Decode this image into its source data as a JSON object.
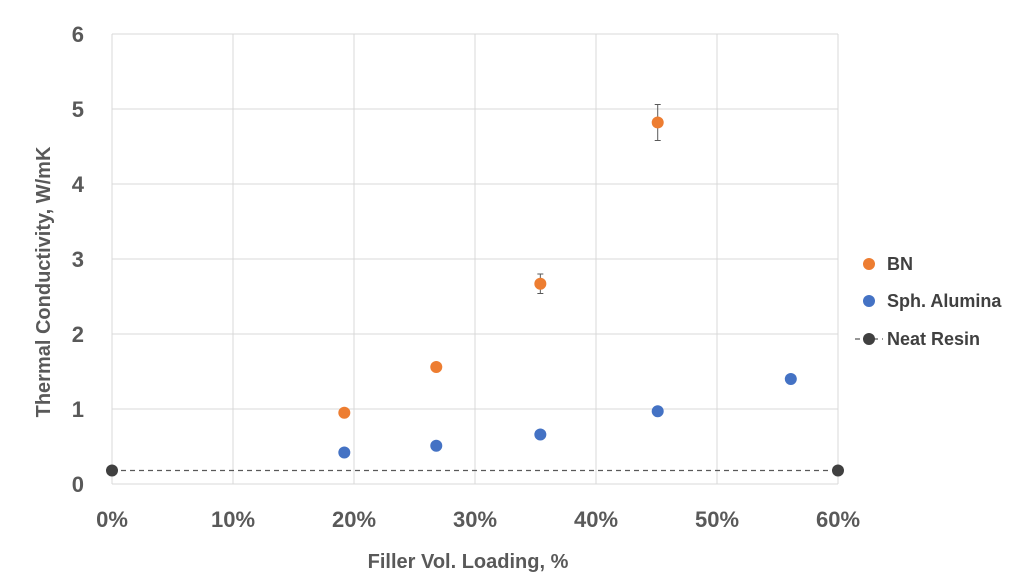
{
  "chart_data": {
    "type": "scatter",
    "xlabel": "Filler Vol. Loading, %",
    "ylabel": "Thermal Conductivity, W/mK",
    "xlim": [
      0,
      60
    ],
    "ylim": [
      0,
      6
    ],
    "x_ticks": [
      "0%",
      "10%",
      "20%",
      "30%",
      "40%",
      "50%",
      "60%"
    ],
    "y_ticks": [
      "0",
      "1",
      "2",
      "3",
      "4",
      "5",
      "6"
    ],
    "grid": true,
    "legend_position": "right",
    "series": [
      {
        "name": "BN",
        "color": "#ED7D31",
        "points": [
          {
            "x": 19.2,
            "y": 0.95
          },
          {
            "x": 26.8,
            "y": 1.56
          },
          {
            "x": 35.4,
            "y": 2.67,
            "err": 0.13
          },
          {
            "x": 45.1,
            "y": 4.82,
            "err": 0.24
          }
        ]
      },
      {
        "name": "Sph. Alumina",
        "color": "#4472C4",
        "points": [
          {
            "x": 19.2,
            "y": 0.42
          },
          {
            "x": 26.8,
            "y": 0.51
          },
          {
            "x": 35.4,
            "y": 0.66
          },
          {
            "x": 45.1,
            "y": 0.97
          },
          {
            "x": 56.1,
            "y": 1.4
          }
        ]
      },
      {
        "name": "Neat Resin",
        "color": "#404040",
        "line": "dashed",
        "points": [
          {
            "x": 0,
            "y": 0.18
          },
          {
            "x": 60,
            "y": 0.18
          }
        ]
      }
    ]
  }
}
